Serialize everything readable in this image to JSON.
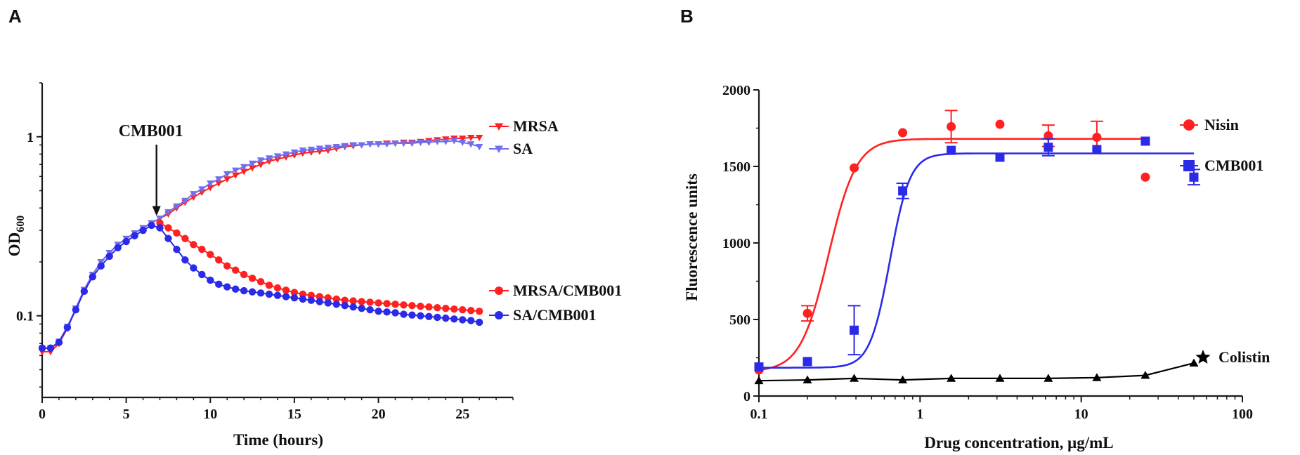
{
  "panel_labels": {
    "a": "A",
    "b": "B"
  },
  "colors": {
    "red": "#ff2020",
    "blue": "#2a2ae8",
    "black": "#000000",
    "lightblue": "#6f6ff0"
  },
  "chart_data": [
    {
      "type": "line",
      "panel": "A",
      "title": "",
      "xlabel": "Time (hours)",
      "ylabel_main": "OD",
      "ylabel_sub": "600",
      "xlim": [
        0,
        28
      ],
      "ylim": [
        0.035,
        2
      ],
      "yscale": "log",
      "x_ticks": [
        0,
        5,
        10,
        15,
        20,
        25
      ],
      "x_tick_labels": [
        "0",
        "5",
        "10",
        "15",
        "20",
        "25"
      ],
      "y_ticks": [
        0.1,
        1
      ],
      "y_tick_labels": [
        "0.1",
        "1"
      ],
      "annotation": {
        "text": "CMB001",
        "x": 6.8,
        "y": 0.33
      },
      "series": [
        {
          "name": "MRSA",
          "marker": "triangle-down",
          "color": "#ff2020",
          "x": [
            0,
            0.5,
            1,
            1.5,
            2,
            2.5,
            3,
            3.5,
            4,
            4.5,
            5,
            5.5,
            6,
            6.5,
            7,
            7.5,
            8,
            8.5,
            9,
            9.5,
            10,
            10.5,
            11,
            11.5,
            12,
            12.5,
            13,
            13.5,
            14,
            14.5,
            15,
            15.5,
            16,
            16.5,
            17,
            17.5,
            18,
            18.5,
            19,
            19.5,
            20,
            20.5,
            21,
            21.5,
            22,
            22.5,
            23,
            23.5,
            24,
            24.5,
            25,
            25.5,
            26
          ],
          "values": [
            0.063,
            0.063,
            0.07,
            0.085,
            0.11,
            0.14,
            0.17,
            0.2,
            0.225,
            0.25,
            0.27,
            0.29,
            0.31,
            0.33,
            0.35,
            0.37,
            0.4,
            0.43,
            0.46,
            0.49,
            0.52,
            0.55,
            0.58,
            0.61,
            0.64,
            0.67,
            0.7,
            0.73,
            0.75,
            0.77,
            0.79,
            0.81,
            0.82,
            0.83,
            0.84,
            0.86,
            0.88,
            0.89,
            0.9,
            0.91,
            0.91,
            0.92,
            0.92,
            0.93,
            0.93,
            0.94,
            0.95,
            0.96,
            0.97,
            0.98,
            0.98,
            0.99,
            0.99
          ]
        },
        {
          "name": "SA",
          "marker": "triangle-down",
          "color": "#6f6ff0",
          "x": [
            0,
            0.5,
            1,
            1.5,
            2,
            2.5,
            3,
            3.5,
            4,
            4.5,
            5,
            5.5,
            6,
            6.5,
            7,
            7.5,
            8,
            8.5,
            9,
            9.5,
            10,
            10.5,
            11,
            11.5,
            12,
            12.5,
            13,
            13.5,
            14,
            14.5,
            15,
            15.5,
            16,
            16.5,
            17,
            17.5,
            18,
            18.5,
            19,
            19.5,
            20,
            20.5,
            21,
            21.5,
            22,
            22.5,
            23,
            23.5,
            24,
            24.5,
            25,
            25.5,
            26
          ],
          "values": [
            0.066,
            0.066,
            0.072,
            0.087,
            0.11,
            0.14,
            0.17,
            0.2,
            0.225,
            0.25,
            0.27,
            0.29,
            0.31,
            0.33,
            0.35,
            0.38,
            0.41,
            0.44,
            0.48,
            0.51,
            0.55,
            0.58,
            0.62,
            0.65,
            0.68,
            0.71,
            0.74,
            0.76,
            0.78,
            0.8,
            0.82,
            0.84,
            0.85,
            0.86,
            0.87,
            0.88,
            0.89,
            0.9,
            0.9,
            0.91,
            0.91,
            0.91,
            0.92,
            0.92,
            0.92,
            0.93,
            0.93,
            0.94,
            0.94,
            0.95,
            0.93,
            0.91,
            0.88
          ]
        },
        {
          "name": "MRSA/CMB001",
          "marker": "circle",
          "color": "#ff2020",
          "x": [
            7,
            7.5,
            8,
            8.5,
            9,
            9.5,
            10,
            10.5,
            11,
            11.5,
            12,
            12.5,
            13,
            13.5,
            14,
            14.5,
            15,
            15.5,
            16,
            16.5,
            17,
            17.5,
            18,
            18.5,
            19,
            19.5,
            20,
            20.5,
            21,
            21.5,
            22,
            22.5,
            23,
            23.5,
            24,
            24.5,
            25,
            25.5,
            26
          ],
          "values": [
            0.33,
            0.31,
            0.29,
            0.27,
            0.25,
            0.235,
            0.22,
            0.205,
            0.19,
            0.18,
            0.17,
            0.162,
            0.155,
            0.148,
            0.143,
            0.139,
            0.135,
            0.132,
            0.13,
            0.128,
            0.126,
            0.124,
            0.122,
            0.121,
            0.12,
            0.119,
            0.118,
            0.117,
            0.116,
            0.115,
            0.114,
            0.113,
            0.112,
            0.111,
            0.11,
            0.109,
            0.108,
            0.107,
            0.106
          ]
        },
        {
          "name": "SA/CMB001",
          "marker": "circle",
          "color": "#2a2ae8",
          "x": [
            0,
            0.5,
            1,
            1.5,
            2,
            2.5,
            3,
            3.5,
            4,
            4.5,
            5,
            5.5,
            6,
            6.5,
            7,
            7.5,
            8,
            8.5,
            9,
            9.5,
            10,
            10.5,
            11,
            11.5,
            12,
            12.5,
            13,
            13.5,
            14,
            14.5,
            15,
            15.5,
            16,
            16.5,
            17,
            17.5,
            18,
            18.5,
            19,
            19.5,
            20,
            20.5,
            21,
            21.5,
            22,
            22.5,
            23,
            23.5,
            24,
            24.5,
            25,
            25.5,
            26
          ],
          "values": [
            0.066,
            0.066,
            0.071,
            0.086,
            0.108,
            0.137,
            0.165,
            0.19,
            0.215,
            0.24,
            0.26,
            0.28,
            0.3,
            0.32,
            0.31,
            0.27,
            0.235,
            0.205,
            0.185,
            0.17,
            0.158,
            0.15,
            0.145,
            0.141,
            0.138,
            0.136,
            0.134,
            0.132,
            0.13,
            0.128,
            0.126,
            0.124,
            0.122,
            0.12,
            0.118,
            0.116,
            0.114,
            0.112,
            0.11,
            0.108,
            0.106,
            0.105,
            0.104,
            0.102,
            0.101,
            0.1,
            0.099,
            0.098,
            0.097,
            0.096,
            0.095,
            0.094,
            0.092
          ]
        }
      ]
    },
    {
      "type": "line",
      "panel": "B",
      "title": "",
      "xlabel": "Drug concentration,  μg/mL",
      "ylabel": "Fluorescence units",
      "xscale": "log",
      "xlim": [
        0.1,
        100
      ],
      "ylim": [
        0,
        2000
      ],
      "x_ticks": [
        0.1,
        1,
        10,
        100
      ],
      "x_tick_labels": [
        "0.1",
        "1",
        "10",
        "100"
      ],
      "y_ticks": [
        0,
        500,
        1000,
        1500,
        2000
      ],
      "y_tick_labels": [
        "0",
        "500",
        "1000",
        "1500",
        "2000"
      ],
      "series": [
        {
          "name": "Nisin",
          "marker": "circle",
          "color": "#ff2020",
          "x": [
            0.1,
            0.2,
            0.39,
            0.78,
            1.56,
            3.13,
            6.25,
            12.5,
            25
          ],
          "values": [
            170,
            540,
            1490,
            1720,
            1760,
            1775,
            1700,
            1690,
            1430
          ],
          "errors": [
            0,
            50,
            0,
            0,
            105,
            0,
            70,
            105,
            0
          ],
          "fit": {
            "bottom": 160,
            "top": 1680,
            "ec50": 0.27,
            "hill": 5.0,
            "x_end": 25
          }
        },
        {
          "name": "CMB001",
          "marker": "square",
          "color": "#2a2ae8",
          "x": [
            0.1,
            0.2,
            0.39,
            0.78,
            1.56,
            3.13,
            6.25,
            12.5,
            25,
            50
          ],
          "values": [
            190,
            225,
            430,
            1340,
            1605,
            1560,
            1625,
            1610,
            1665,
            1430
          ],
          "errors": [
            0,
            0,
            160,
            50,
            0,
            0,
            55,
            0,
            0,
            50
          ],
          "fit": {
            "bottom": 185,
            "top": 1585,
            "ec50": 0.65,
            "hill": 7.0,
            "x_end": 50
          }
        },
        {
          "name": "Colistin",
          "marker": "triangle-up",
          "color": "#000000",
          "x": [
            0.1,
            0.2,
            0.39,
            0.78,
            1.56,
            3.13,
            6.25,
            12.5,
            25,
            50
          ],
          "values": [
            100,
            105,
            115,
            105,
            115,
            115,
            115,
            120,
            135,
            215
          ],
          "errors": [
            0,
            0,
            0,
            0,
            0,
            0,
            0,
            0,
            0,
            0
          ]
        }
      ]
    }
  ]
}
